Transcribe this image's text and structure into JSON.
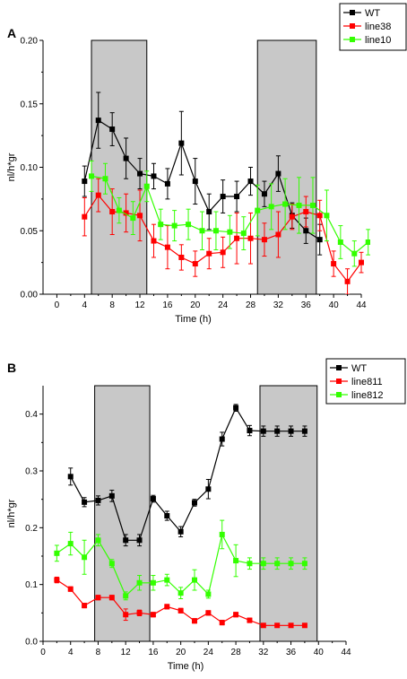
{
  "chart_data": [
    {
      "type": "line",
      "panel": "A",
      "xlabel": "Time (h)",
      "ylabel": "nl/h*gr",
      "xlim": [
        -2,
        44
      ],
      "ylim": [
        0,
        0.2
      ],
      "xticks": [
        0,
        4,
        8,
        12,
        16,
        20,
        24,
        28,
        32,
        36,
        40,
        44
      ],
      "yticks": [
        0.0,
        0.05,
        0.1,
        0.15,
        0.2
      ],
      "ytick_labels": [
        "0.00",
        "0.05",
        "0.10",
        "0.15",
        "0.20"
      ],
      "shaded_intervals": [
        [
          5,
          13
        ],
        [
          29,
          37.5
        ]
      ],
      "legend_position": "top-right",
      "series": [
        {
          "name": "WT",
          "color": "#000000",
          "x": [
            4,
            6,
            8,
            10,
            12,
            14,
            16,
            18,
            20,
            22,
            24,
            26,
            28,
            30,
            32,
            34,
            36,
            38
          ],
          "y": [
            0.089,
            0.137,
            0.13,
            0.107,
            0.095,
            0.093,
            0.087,
            0.119,
            0.089,
            0.065,
            0.077,
            0.077,
            0.089,
            0.079,
            0.095,
            0.062,
            0.05,
            0.043
          ],
          "err": [
            0.012,
            0.022,
            0.013,
            0.016,
            0.012,
            0.01,
            0.012,
            0.025,
            0.018,
            0.014,
            0.013,
            0.012,
            0.011,
            0.01,
            0.014,
            0.01,
            0.01,
            0.012
          ]
        },
        {
          "name": "line38",
          "color": "#ff0000",
          "x": [
            4,
            6,
            8,
            10,
            12,
            14,
            16,
            18,
            20,
            22,
            24,
            26,
            28,
            30,
            32,
            34,
            36,
            38,
            40,
            42,
            44
          ],
          "y": [
            0.061,
            0.078,
            0.065,
            0.064,
            0.062,
            0.042,
            0.037,
            0.029,
            0.024,
            0.032,
            0.033,
            0.044,
            0.044,
            0.043,
            0.047,
            0.061,
            0.065,
            0.062,
            0.024,
            0.01,
            0.025
          ],
          "err": [
            0.015,
            0.013,
            0.018,
            0.015,
            0.02,
            0.013,
            0.017,
            0.01,
            0.01,
            0.012,
            0.012,
            0.02,
            0.02,
            0.013,
            0.018,
            0.01,
            0.012,
            0.012,
            0.01,
            0.01,
            0.008
          ]
        },
        {
          "name": "line10",
          "color": "#33ff00",
          "x": [
            5,
            7,
            9,
            11,
            13,
            15,
            17,
            19,
            21,
            23,
            25,
            27,
            29,
            31,
            33,
            35,
            37,
            39,
            41,
            43,
            45
          ],
          "y": [
            0.093,
            0.091,
            0.066,
            0.06,
            0.085,
            0.055,
            0.054,
            0.055,
            0.05,
            0.05,
            0.049,
            0.048,
            0.066,
            0.069,
            0.071,
            0.07,
            0.07,
            0.062,
            0.041,
            0.032,
            0.041
          ],
          "err": [
            0.012,
            0.012,
            0.01,
            0.013,
            0.012,
            0.012,
            0.012,
            0.012,
            0.015,
            0.015,
            0.013,
            0.013,
            0.02,
            0.018,
            0.02,
            0.022,
            0.022,
            0.02,
            0.013,
            0.01,
            0.01
          ]
        }
      ]
    },
    {
      "type": "line",
      "panel": "B",
      "xlabel": "Time (h)",
      "ylabel": "nl/h*gr",
      "xlim": [
        0,
        44
      ],
      "ylim": [
        0,
        0.45
      ],
      "xticks": [
        0,
        4,
        8,
        12,
        16,
        20,
        24,
        28,
        32,
        36,
        40,
        44
      ],
      "yticks": [
        0.0,
        0.1,
        0.2,
        0.3,
        0.4
      ],
      "ytick_labels": [
        "0.0",
        "0.1",
        "0.2",
        "0.3",
        "0.4"
      ],
      "shaded_intervals": [
        [
          7.5,
          15.5
        ],
        [
          31.5,
          39.8
        ]
      ],
      "legend_position": "top-right",
      "series": [
        {
          "name": "WT",
          "color": "#000000",
          "x": [
            4,
            6,
            8,
            10,
            12,
            14,
            16,
            18,
            20,
            22,
            24,
            26,
            28,
            30,
            32,
            34,
            36,
            38
          ],
          "y": [
            0.29,
            0.245,
            0.248,
            0.256,
            0.178,
            0.178,
            0.251,
            0.221,
            0.193,
            0.244,
            0.268,
            0.356,
            0.411,
            0.371,
            0.37,
            0.37,
            0.37,
            0.37
          ],
          "err": [
            0.015,
            0.008,
            0.008,
            0.01,
            0.01,
            0.01,
            0.006,
            0.008,
            0.009,
            0.006,
            0.017,
            0.012,
            0.006,
            0.009,
            0.009,
            0.009,
            0.009,
            0.009
          ]
        },
        {
          "name": "line811",
          "color": "#ff0000",
          "x": [
            2,
            4,
            6,
            8,
            10,
            12,
            14,
            16,
            18,
            20,
            22,
            24,
            26,
            28,
            30,
            32,
            34,
            36,
            38
          ],
          "y": [
            0.108,
            0.092,
            0.063,
            0.077,
            0.077,
            0.047,
            0.05,
            0.047,
            0.061,
            0.054,
            0.036,
            0.05,
            0.033,
            0.047,
            0.037,
            0.028,
            0.028,
            0.028,
            0.028
          ],
          "err": [
            0.005,
            0.004,
            0.004,
            0.004,
            0.004,
            0.01,
            0.005,
            0.004,
            0.004,
            0.004,
            0.004,
            0.004,
            0.004,
            0.004,
            0.004,
            0.003,
            0.003,
            0.003,
            0.003
          ]
        },
        {
          "name": "line812",
          "color": "#33ff00",
          "x": [
            2,
            4,
            6,
            8,
            10,
            12,
            14,
            16,
            18,
            20,
            22,
            24,
            26,
            28,
            30,
            32,
            34,
            36,
            38
          ],
          "y": [
            0.155,
            0.172,
            0.148,
            0.178,
            0.137,
            0.08,
            0.103,
            0.103,
            0.108,
            0.085,
            0.108,
            0.083,
            0.188,
            0.142,
            0.137,
            0.137,
            0.137,
            0.137,
            0.137
          ],
          "err": [
            0.014,
            0.02,
            0.03,
            0.01,
            0.007,
            0.007,
            0.013,
            0.013,
            0.01,
            0.01,
            0.018,
            0.007,
            0.025,
            0.028,
            0.01,
            0.01,
            0.01,
            0.01,
            0.01
          ]
        }
      ]
    }
  ]
}
